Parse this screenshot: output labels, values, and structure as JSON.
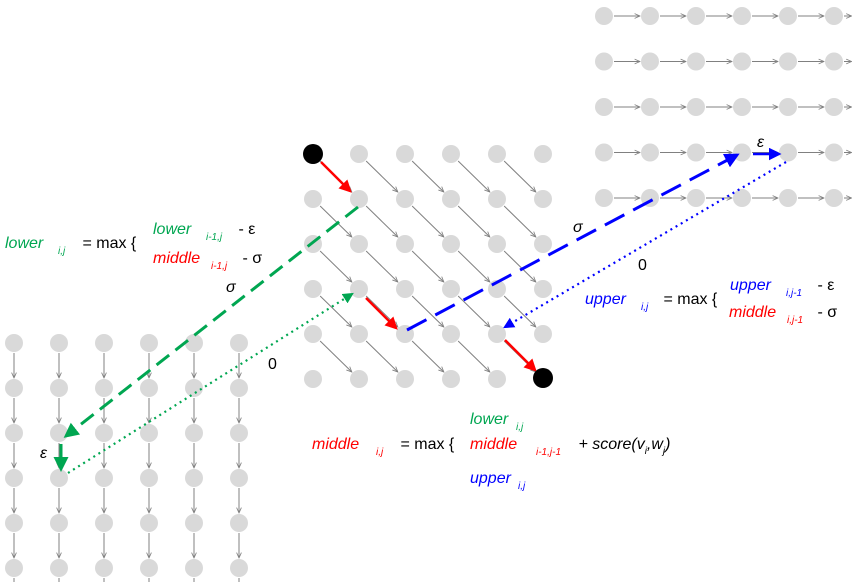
{
  "colors": {
    "node": "#d9d9d9",
    "grey_edge": "#808080",
    "lower": "#00a651",
    "middle": "#ff0000",
    "upper": "#0000ff",
    "endpoint": "#000000"
  },
  "layers": {
    "lower": {
      "columns": 6,
      "rows": 6,
      "edge_direction": "down"
    },
    "middle": {
      "columns": 6,
      "rows": 6,
      "edge_direction": "diagonal"
    },
    "upper": {
      "columns": 6,
      "rows": 5,
      "edge_direction": "right"
    }
  },
  "labels": {
    "epsilon_left": "ε",
    "epsilon_right": "ε",
    "sigma_left": "σ",
    "sigma_right": "σ",
    "zero_left": "0",
    "zero_right": "0"
  },
  "formulas": {
    "lower": {
      "lhs": "lower",
      "lhs_sub": "i,j",
      "eq": " = max {",
      "t1": "lower",
      "t1_sub": "i-1,j",
      "t1_tail": " - ε",
      "t2": "middle",
      "t2_sub": "i-1,j",
      "t2_tail": " - σ"
    },
    "upper": {
      "lhs": "upper",
      "lhs_sub": "i,j",
      "eq": " = max {",
      "t1": "upper",
      "t1_sub": "i,j-1",
      "t1_tail": " - ε",
      "t2": "middle",
      "t2_sub": "i,j-1",
      "t2_tail": " - σ"
    },
    "middle": {
      "lhs": "middle",
      "lhs_sub": "i,j",
      "eq": " = max {",
      "t1": "lower",
      "t1_sub": "i,j",
      "t2": "middle",
      "t2_sub": "i-1,j-1",
      "t2_tail_a": " + score(v",
      "t2_tail_b": "i",
      "t2_tail_c": ",w",
      "t2_tail_d": "j",
      "t2_tail_e": ")",
      "t3": "upper",
      "t3_sub": "i,j"
    }
  }
}
